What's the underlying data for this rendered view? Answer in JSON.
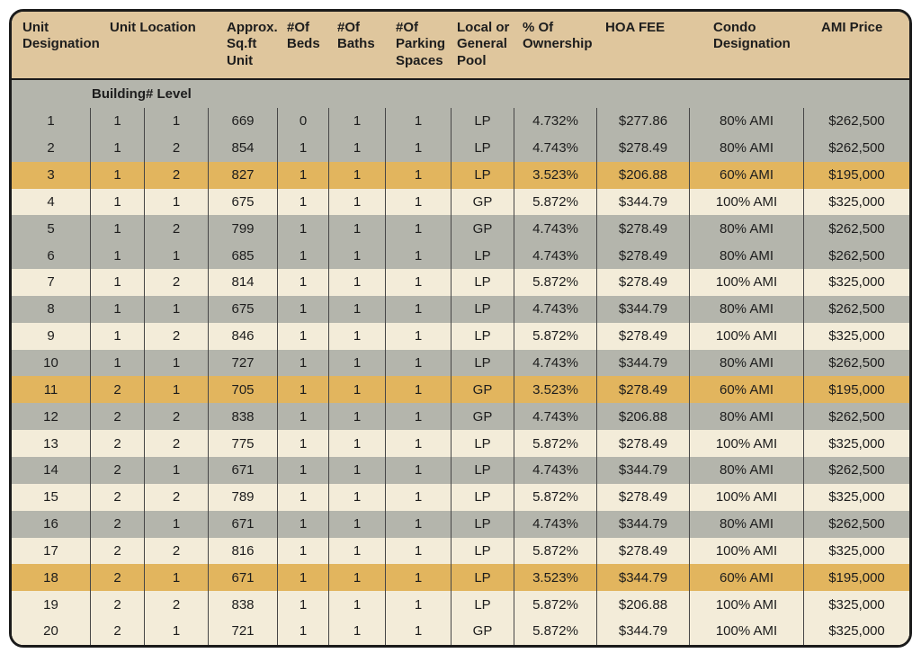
{
  "colors": {
    "header_bg": "#dfc69d",
    "row_gray": "#b4b5ac",
    "row_gold_highlight": "#e2b55e",
    "row_cream": "#f3ecd9",
    "table_border": "#1b1b1b",
    "column_divider": "#474747",
    "text": "#1d1d1d",
    "page_bg": "#ffffff"
  },
  "table": {
    "headers": {
      "unit_designation": "Unit Designation",
      "unit_location": "Unit Location",
      "sqft": "Approx. Sq.ft Unit",
      "beds": "#Of Beds",
      "baths": "#Of Baths",
      "parking": "#Of Parking Spaces",
      "pool": "Local or General Pool",
      "ownership": "% Of Ownership",
      "hoa": "HOA FEE",
      "condo": "Condo Designation",
      "ami": "AMI Price"
    },
    "subheader": "Building# Level",
    "rows": [
      {
        "unit": "1",
        "building": "1",
        "level": "1",
        "sqft": "669",
        "beds": "0",
        "baths": "1",
        "parking": "1",
        "pool": "LP",
        "ownership": "4.732%",
        "hoa": "$277.86",
        "condo": "80% AMI",
        "ami": "$262,500",
        "highlight": "gray"
      },
      {
        "unit": "2",
        "building": "1",
        "level": "2",
        "sqft": "854",
        "beds": "1",
        "baths": "1",
        "parking": "1",
        "pool": "LP",
        "ownership": "4.743%",
        "hoa": "$278.49",
        "condo": "80% AMI",
        "ami": "$262,500",
        "highlight": "gray"
      },
      {
        "unit": "3",
        "building": "1",
        "level": "2",
        "sqft": "827",
        "beds": "1",
        "baths": "1",
        "parking": "1",
        "pool": "LP",
        "ownership": "3.523%",
        "hoa": "$206.88",
        "condo": "60% AMI",
        "ami": "$195,000",
        "highlight": "gold"
      },
      {
        "unit": "4",
        "building": "1",
        "level": "1",
        "sqft": "675",
        "beds": "1",
        "baths": "1",
        "parking": "1",
        "pool": "GP",
        "ownership": "5.872%",
        "hoa": "$344.79",
        "condo": "100% AMI",
        "ami": "$325,000",
        "highlight": "cream"
      },
      {
        "unit": "5",
        "building": "1",
        "level": "2",
        "sqft": "799",
        "beds": "1",
        "baths": "1",
        "parking": "1",
        "pool": "GP",
        "ownership": "4.743%",
        "hoa": "$278.49",
        "condo": "80% AMI",
        "ami": "$262,500",
        "highlight": "gray"
      },
      {
        "unit": "6",
        "building": "1",
        "level": "1",
        "sqft": "685",
        "beds": "1",
        "baths": "1",
        "parking": "1",
        "pool": "LP",
        "ownership": "4.743%",
        "hoa": "$278.49",
        "condo": "80% AMI",
        "ami": "$262,500",
        "highlight": "gray"
      },
      {
        "unit": "7",
        "building": "1",
        "level": "2",
        "sqft": "814",
        "beds": "1",
        "baths": "1",
        "parking": "1",
        "pool": "LP",
        "ownership": "5.872%",
        "hoa": "$278.49",
        "condo": "100% AMI",
        "ami": "$325,000",
        "highlight": "cream"
      },
      {
        "unit": "8",
        "building": "1",
        "level": "1",
        "sqft": "675",
        "beds": "1",
        "baths": "1",
        "parking": "1",
        "pool": "LP",
        "ownership": "4.743%",
        "hoa": "$344.79",
        "condo": "80% AMI",
        "ami": "$262,500",
        "highlight": "gray"
      },
      {
        "unit": "9",
        "building": "1",
        "level": "2",
        "sqft": "846",
        "beds": "1",
        "baths": "1",
        "parking": "1",
        "pool": "LP",
        "ownership": "5.872%",
        "hoa": "$278.49",
        "condo": "100% AMI",
        "ami": "$325,000",
        "highlight": "cream"
      },
      {
        "unit": "10",
        "building": "1",
        "level": "1",
        "sqft": "727",
        "beds": "1",
        "baths": "1",
        "parking": "1",
        "pool": "LP",
        "ownership": "4.743%",
        "hoa": "$344.79",
        "condo": "80% AMI",
        "ami": "$262,500",
        "highlight": "gray"
      },
      {
        "unit": "11",
        "building": "2",
        "level": "1",
        "sqft": "705",
        "beds": "1",
        "baths": "1",
        "parking": "1",
        "pool": "GP",
        "ownership": "3.523%",
        "hoa": "$278.49",
        "condo": "60% AMI",
        "ami": "$195,000",
        "highlight": "gold"
      },
      {
        "unit": "12",
        "building": "2",
        "level": "2",
        "sqft": "838",
        "beds": "1",
        "baths": "1",
        "parking": "1",
        "pool": "GP",
        "ownership": "4.743%",
        "hoa": "$206.88",
        "condo": "80% AMI",
        "ami": "$262,500",
        "highlight": "gray"
      },
      {
        "unit": "13",
        "building": "2",
        "level": "2",
        "sqft": "775",
        "beds": "1",
        "baths": "1",
        "parking": "1",
        "pool": "LP",
        "ownership": "5.872%",
        "hoa": "$278.49",
        "condo": "100% AMI",
        "ami": "$325,000",
        "highlight": "cream"
      },
      {
        "unit": "14",
        "building": "2",
        "level": "1",
        "sqft": "671",
        "beds": "1",
        "baths": "1",
        "parking": "1",
        "pool": "LP",
        "ownership": "4.743%",
        "hoa": "$344.79",
        "condo": "80% AMI",
        "ami": "$262,500",
        "highlight": "gray"
      },
      {
        "unit": "15",
        "building": "2",
        "level": "2",
        "sqft": "789",
        "beds": "1",
        "baths": "1",
        "parking": "1",
        "pool": "LP",
        "ownership": "5.872%",
        "hoa": "$278.49",
        "condo": "100% AMI",
        "ami": "$325,000",
        "highlight": "cream"
      },
      {
        "unit": "16",
        "building": "2",
        "level": "1",
        "sqft": "671",
        "beds": "1",
        "baths": "1",
        "parking": "1",
        "pool": "LP",
        "ownership": "4.743%",
        "hoa": "$344.79",
        "condo": "80% AMI",
        "ami": "$262,500",
        "highlight": "gray"
      },
      {
        "unit": "17",
        "building": "2",
        "level": "2",
        "sqft": "816",
        "beds": "1",
        "baths": "1",
        "parking": "1",
        "pool": "LP",
        "ownership": "5.872%",
        "hoa": "$278.49",
        "condo": "100% AMI",
        "ami": "$325,000",
        "highlight": "cream"
      },
      {
        "unit": "18",
        "building": "2",
        "level": "1",
        "sqft": "671",
        "beds": "1",
        "baths": "1",
        "parking": "1",
        "pool": "LP",
        "ownership": "3.523%",
        "hoa": "$344.79",
        "condo": "60% AMI",
        "ami": "$195,000",
        "highlight": "gold"
      },
      {
        "unit": "19",
        "building": "2",
        "level": "2",
        "sqft": "838",
        "beds": "1",
        "baths": "1",
        "parking": "1",
        "pool": "LP",
        "ownership": "5.872%",
        "hoa": "$206.88",
        "condo": "100% AMI",
        "ami": "$325,000",
        "highlight": "cream"
      },
      {
        "unit": "20",
        "building": "2",
        "level": "1",
        "sqft": "721",
        "beds": "1",
        "baths": "1",
        "parking": "1",
        "pool": "GP",
        "ownership": "5.872%",
        "hoa": "$344.79",
        "condo": "100% AMI",
        "ami": "$325,000",
        "highlight": "cream"
      }
    ]
  }
}
